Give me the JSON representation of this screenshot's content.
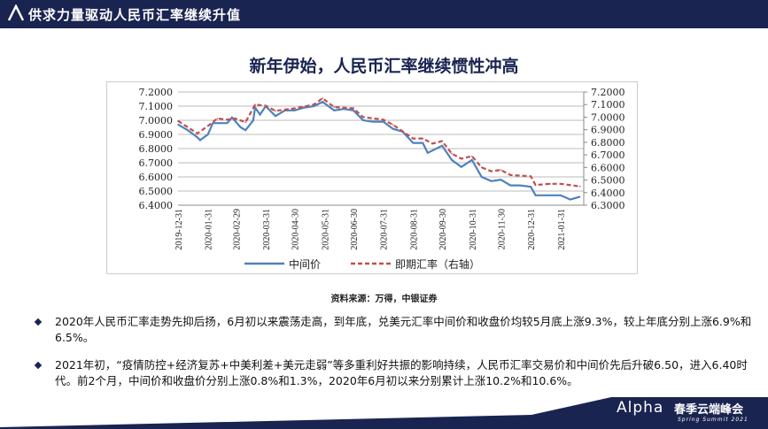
{
  "header": {
    "title": "供求力量驱动人民币汇率继续升值"
  },
  "slide_title": "新年伊始，人民币汇率继续惯性冲高",
  "source": "资料来源：万得，中银证券",
  "bullets": [
    "2020年人民币汇率走势先抑后扬，6月初以来震荡走高，到年底，兑美元汇率中间价和收盘价均较5月底上涨9.3%，较上年底分别上涨6.9%和6.5%。",
    "2021年初，“疫情防控+经济复苏+中美利差+美元走弱”等多重利好共振的影响持续，人民币汇率交易价和中间价先后升破6.50，进入6.40时代。前2个月，中间价和收盘价分别上涨0.8%和1.3%，2020年6月初以来分别累计上涨10.2%和10.6%。"
  ],
  "brand": {
    "name": "Alpha",
    "cn": "春季云端峰会",
    "en": "Spring Summit 2021"
  },
  "colors": {
    "header": "#1a2451",
    "mid": "#4f81bd",
    "spot": "#c0504d"
  },
  "chart_data": {
    "type": "line",
    "grid": true,
    "legend": "bottom",
    "x_ticks": [
      "2019-12-31",
      "2020-01-31",
      "2020-02-29",
      "2020-03-31",
      "2020-04-30",
      "2020-05-31",
      "2020-06-30",
      "2020-07-31",
      "2020-08-31",
      "2020-09-30",
      "2020-10-31",
      "2020-11-30",
      "2020-12-31",
      "2021-01-31"
    ],
    "y_left": {
      "ticks": [
        "7.2000",
        "7.1000",
        "7.0000",
        "6.9000",
        "6.8000",
        "6.7000",
        "6.6000",
        "6.5000",
        "6.4000"
      ],
      "range": [
        6.4,
        7.2
      ]
    },
    "y_right": {
      "ticks": [
        "7.2000",
        "7.1000",
        "7.0000",
        "6.9000",
        "6.8000",
        "6.7000",
        "6.6000",
        "6.5000",
        "6.4000",
        "6.3000"
      ],
      "range": [
        6.3,
        7.2
      ]
    },
    "series": [
      {
        "name": "中间价",
        "axis": "left",
        "style": "solid",
        "points": [
          [
            "2019-12-31",
            6.97
          ],
          [
            "2020-01-10",
            6.93
          ],
          [
            "2020-01-20",
            6.88
          ],
          [
            "2020-01-23",
            6.86
          ],
          [
            "2020-01-31",
            6.9
          ],
          [
            "2020-02-05",
            6.98
          ],
          [
            "2020-02-20",
            6.98
          ],
          [
            "2020-02-25",
            7.02
          ],
          [
            "2020-03-05",
            6.95
          ],
          [
            "2020-03-10",
            6.93
          ],
          [
            "2020-03-18",
            7.0
          ],
          [
            "2020-03-20",
            7.09
          ],
          [
            "2020-03-25",
            7.04
          ],
          [
            "2020-03-31",
            7.1
          ],
          [
            "2020-04-10",
            7.03
          ],
          [
            "2020-04-20",
            7.07
          ],
          [
            "2020-04-30",
            7.07
          ],
          [
            "2020-05-10",
            7.09
          ],
          [
            "2020-05-20",
            7.1
          ],
          [
            "2020-05-29",
            7.13
          ],
          [
            "2020-06-10",
            7.07
          ],
          [
            "2020-06-20",
            7.08
          ],
          [
            "2020-06-30",
            7.07
          ],
          [
            "2020-07-10",
            7.0
          ],
          [
            "2020-07-20",
            6.99
          ],
          [
            "2020-07-31",
            6.99
          ],
          [
            "2020-08-10",
            6.94
          ],
          [
            "2020-08-20",
            6.92
          ],
          [
            "2020-08-31",
            6.84
          ],
          [
            "2020-09-10",
            6.84
          ],
          [
            "2020-09-15",
            6.77
          ],
          [
            "2020-09-30",
            6.82
          ],
          [
            "2020-10-10",
            6.72
          ],
          [
            "2020-10-20",
            6.67
          ],
          [
            "2020-10-31",
            6.72
          ],
          [
            "2020-11-10",
            6.6
          ],
          [
            "2020-11-20",
            6.57
          ],
          [
            "2020-11-30",
            6.58
          ],
          [
            "2020-12-10",
            6.54
          ],
          [
            "2020-12-20",
            6.54
          ],
          [
            "2020-12-31",
            6.53
          ],
          [
            "2021-01-05",
            6.47
          ],
          [
            "2021-01-15",
            6.47
          ],
          [
            "2021-01-31",
            6.47
          ],
          [
            "2021-02-10",
            6.44
          ],
          [
            "2021-02-20",
            6.46
          ]
        ]
      },
      {
        "name": "即期汇率（右轴）",
        "axis": "right",
        "style": "dashed",
        "points": [
          [
            "2019-12-31",
            6.97
          ],
          [
            "2020-01-20",
            6.87
          ],
          [
            "2020-01-31",
            6.93
          ],
          [
            "2020-02-10",
            6.99
          ],
          [
            "2020-02-20",
            6.98
          ],
          [
            "2020-02-28",
            6.99
          ],
          [
            "2020-03-10",
            6.96
          ],
          [
            "2020-03-20",
            7.1
          ],
          [
            "2020-03-31",
            7.09
          ],
          [
            "2020-04-10",
            7.05
          ],
          [
            "2020-04-30",
            7.07
          ],
          [
            "2020-05-20",
            7.1
          ],
          [
            "2020-05-29",
            7.15
          ],
          [
            "2020-06-10",
            7.08
          ],
          [
            "2020-06-30",
            7.07
          ],
          [
            "2020-07-10",
            7.0
          ],
          [
            "2020-07-31",
            6.98
          ],
          [
            "2020-08-10",
            6.94
          ],
          [
            "2020-08-31",
            6.83
          ],
          [
            "2020-09-10",
            6.83
          ],
          [
            "2020-09-20",
            6.79
          ],
          [
            "2020-09-30",
            6.81
          ],
          [
            "2020-10-10",
            6.71
          ],
          [
            "2020-10-20",
            6.67
          ],
          [
            "2020-10-31",
            6.69
          ],
          [
            "2020-11-10",
            6.6
          ],
          [
            "2020-11-20",
            6.57
          ],
          [
            "2020-11-30",
            6.58
          ],
          [
            "2020-12-10",
            6.54
          ],
          [
            "2020-12-31",
            6.53
          ],
          [
            "2021-01-05",
            6.46
          ],
          [
            "2021-01-20",
            6.47
          ],
          [
            "2021-01-31",
            6.47
          ],
          [
            "2021-02-20",
            6.45
          ]
        ]
      }
    ]
  }
}
